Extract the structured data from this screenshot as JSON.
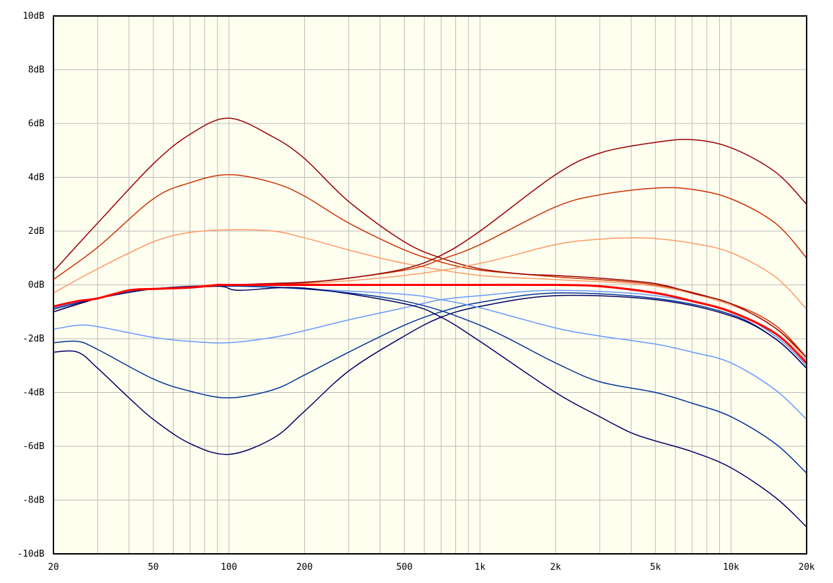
{
  "chart_data": {
    "type": "line",
    "title": "",
    "xlabel": "",
    "ylabel": "",
    "x_scale": "log",
    "xlim": [
      20,
      20000
    ],
    "ylim": [
      -10,
      10
    ],
    "grid": true,
    "background": "#fffff0",
    "x_ticks": [
      {
        "value": 20,
        "label": "20"
      },
      {
        "value": 50,
        "label": "50"
      },
      {
        "value": 100,
        "label": "100"
      },
      {
        "value": 200,
        "label": "200"
      },
      {
        "value": 500,
        "label": "500"
      },
      {
        "value": 1000,
        "label": "1k"
      },
      {
        "value": 2000,
        "label": "2k"
      },
      {
        "value": 5000,
        "label": "5k"
      },
      {
        "value": 10000,
        "label": "10k"
      },
      {
        "value": 20000,
        "label": "20k"
      }
    ],
    "y_ticks": [
      {
        "value": 10,
        "label": "10dB"
      },
      {
        "value": 8,
        "label": "8dB"
      },
      {
        "value": 6,
        "label": "6dB"
      },
      {
        "value": 4,
        "label": "4dB"
      },
      {
        "value": 2,
        "label": "2dB"
      },
      {
        "value": 0,
        "label": "0dB"
      },
      {
        "value": -2,
        "label": "-2dB"
      },
      {
        "value": -4,
        "label": "-4dB"
      },
      {
        "value": -6,
        "label": "-6dB"
      },
      {
        "value": -8,
        "label": "-8dB"
      },
      {
        "value": -10,
        "label": "-10dB"
      }
    ],
    "series": [
      {
        "color": "#ff9966",
        "width": 1.5,
        "points": [
          [
            20,
            -0.3
          ],
          [
            30,
            0.6
          ],
          [
            50,
            1.6
          ],
          [
            70,
            1.95
          ],
          [
            100,
            2.05
          ],
          [
            150,
            2.0
          ],
          [
            200,
            1.75
          ],
          [
            300,
            1.3
          ],
          [
            500,
            0.8
          ],
          [
            1000,
            0.35
          ],
          [
            2000,
            0.2
          ],
          [
            5000,
            -0.05
          ],
          [
            10000,
            -0.75
          ],
          [
            15000,
            -1.6
          ],
          [
            20000,
            -2.8
          ]
        ]
      },
      {
        "color": "#cc3300",
        "width": 1.5,
        "points": [
          [
            20,
            0.2
          ],
          [
            30,
            1.4
          ],
          [
            50,
            3.2
          ],
          [
            70,
            3.8
          ],
          [
            100,
            4.1
          ],
          [
            150,
            3.8
          ],
          [
            200,
            3.3
          ],
          [
            300,
            2.3
          ],
          [
            500,
            1.3
          ],
          [
            700,
            0.85
          ],
          [
            1000,
            0.55
          ],
          [
            2000,
            0.3
          ],
          [
            5000,
            0.0
          ],
          [
            10000,
            -0.7
          ],
          [
            15000,
            -1.5
          ],
          [
            20000,
            -2.7
          ]
        ]
      },
      {
        "color": "#990000",
        "width": 1.5,
        "points": [
          [
            20,
            0.5
          ],
          [
            30,
            2.3
          ],
          [
            50,
            4.5
          ],
          [
            70,
            5.6
          ],
          [
            100,
            6.2
          ],
          [
            150,
            5.5
          ],
          [
            200,
            4.7
          ],
          [
            300,
            3.1
          ],
          [
            500,
            1.6
          ],
          [
            700,
            1.0
          ],
          [
            1000,
            0.6
          ],
          [
            1500,
            0.4
          ],
          [
            2000,
            0.35
          ],
          [
            3000,
            0.25
          ],
          [
            5000,
            0.05
          ],
          [
            7000,
            -0.3
          ],
          [
            10000,
            -0.7
          ],
          [
            15000,
            -1.6
          ],
          [
            20000,
            -2.7
          ]
        ]
      },
      {
        "color": "#ff9966",
        "width": 1.5,
        "points": [
          [
            20,
            -0.8
          ],
          [
            30,
            -0.5
          ],
          [
            50,
            -0.15
          ],
          [
            90,
            0
          ],
          [
            200,
            0.05
          ],
          [
            500,
            0.35
          ],
          [
            1000,
            0.8
          ],
          [
            2000,
            1.5
          ],
          [
            3000,
            1.7
          ],
          [
            4000,
            1.75
          ],
          [
            5000,
            1.72
          ],
          [
            7000,
            1.55
          ],
          [
            10000,
            1.2
          ],
          [
            15000,
            0.3
          ],
          [
            20000,
            -0.9
          ]
        ]
      },
      {
        "color": "#cc3300",
        "width": 1.5,
        "points": [
          [
            20,
            -0.9
          ],
          [
            30,
            -0.5
          ],
          [
            50,
            -0.15
          ],
          [
            90,
            -0.02
          ],
          [
            200,
            0.08
          ],
          [
            500,
            0.55
          ],
          [
            700,
            0.95
          ],
          [
            1000,
            1.5
          ],
          [
            2000,
            2.9
          ],
          [
            3000,
            3.35
          ],
          [
            5000,
            3.6
          ],
          [
            7000,
            3.55
          ],
          [
            10000,
            3.2
          ],
          [
            15000,
            2.3
          ],
          [
            20000,
            1.0
          ]
        ]
      },
      {
        "color": "#990000",
        "width": 1.5,
        "points": [
          [
            20,
            -1.0
          ],
          [
            30,
            -0.5
          ],
          [
            40,
            -0.2
          ],
          [
            50,
            -0.15
          ],
          [
            90,
            -0.05
          ],
          [
            100,
            0
          ],
          [
            200,
            0.1
          ],
          [
            300,
            0.25
          ],
          [
            500,
            0.6
          ],
          [
            700,
            1.1
          ],
          [
            1000,
            2.0
          ],
          [
            2000,
            4.1
          ],
          [
            3000,
            4.9
          ],
          [
            5000,
            5.3
          ],
          [
            7000,
            5.4
          ],
          [
            10000,
            5.1
          ],
          [
            15000,
            4.2
          ],
          [
            20000,
            3.0
          ]
        ]
      },
      {
        "color": "#6699ff",
        "width": 1.5,
        "points": [
          [
            20,
            -1.65
          ],
          [
            25,
            -1.5
          ],
          [
            30,
            -1.55
          ],
          [
            50,
            -1.95
          ],
          [
            70,
            -2.1
          ],
          [
            100,
            -2.15
          ],
          [
            150,
            -1.95
          ],
          [
            200,
            -1.7
          ],
          [
            300,
            -1.3
          ],
          [
            500,
            -0.85
          ],
          [
            700,
            -0.55
          ],
          [
            1000,
            -0.4
          ],
          [
            2000,
            -0.2
          ],
          [
            5000,
            -0.4
          ],
          [
            10000,
            -1.0
          ],
          [
            15000,
            -1.9
          ],
          [
            20000,
            -3.0
          ]
        ]
      },
      {
        "color": "#003399",
        "width": 1.5,
        "points": [
          [
            20,
            -2.15
          ],
          [
            25,
            -2.1
          ],
          [
            30,
            -2.4
          ],
          [
            50,
            -3.5
          ],
          [
            70,
            -3.95
          ],
          [
            100,
            -4.2
          ],
          [
            150,
            -3.9
          ],
          [
            200,
            -3.35
          ],
          [
            300,
            -2.5
          ],
          [
            500,
            -1.5
          ],
          [
            700,
            -1.0
          ],
          [
            1000,
            -0.65
          ],
          [
            2000,
            -0.3
          ],
          [
            5000,
            -0.5
          ],
          [
            10000,
            -1.1
          ],
          [
            15000,
            -2.0
          ],
          [
            20000,
            -3.1
          ]
        ]
      },
      {
        "color": "#000066",
        "width": 1.5,
        "points": [
          [
            20,
            -2.5
          ],
          [
            25,
            -2.5
          ],
          [
            30,
            -3.1
          ],
          [
            40,
            -4.2
          ],
          [
            50,
            -5.0
          ],
          [
            70,
            -5.9
          ],
          [
            100,
            -6.3
          ],
          [
            150,
            -5.7
          ],
          [
            200,
            -4.7
          ],
          [
            300,
            -3.2
          ],
          [
            500,
            -1.9
          ],
          [
            700,
            -1.2
          ],
          [
            1000,
            -0.8
          ],
          [
            2000,
            -0.4
          ],
          [
            5000,
            -0.55
          ],
          [
            10000,
            -1.15
          ],
          [
            15000,
            -2.0
          ],
          [
            20000,
            -3.1
          ]
        ]
      },
      {
        "color": "#6699ff",
        "width": 1.5,
        "points": [
          [
            20,
            -0.85
          ],
          [
            30,
            -0.5
          ],
          [
            50,
            -0.15
          ],
          [
            90,
            -0.03
          ],
          [
            200,
            -0.15
          ],
          [
            500,
            -0.35
          ],
          [
            700,
            -0.55
          ],
          [
            1000,
            -0.85
          ],
          [
            2000,
            -1.6
          ],
          [
            3000,
            -1.9
          ],
          [
            5000,
            -2.2
          ],
          [
            7000,
            -2.5
          ],
          [
            10000,
            -2.9
          ],
          [
            15000,
            -3.9
          ],
          [
            20000,
            -5.0
          ]
        ]
      },
      {
        "color": "#003399",
        "width": 1.5,
        "points": [
          [
            20,
            -0.9
          ],
          [
            30,
            -0.5
          ],
          [
            50,
            -0.15
          ],
          [
            90,
            -0.04
          ],
          [
            200,
            -0.15
          ],
          [
            500,
            -0.6
          ],
          [
            1000,
            -1.5
          ],
          [
            2000,
            -2.9
          ],
          [
            3000,
            -3.6
          ],
          [
            5000,
            -4.0
          ],
          [
            7000,
            -4.4
          ],
          [
            10000,
            -4.9
          ],
          [
            15000,
            -5.9
          ],
          [
            20000,
            -7.0
          ]
        ]
      },
      {
        "color": "#000066",
        "width": 1.5,
        "points": [
          [
            20,
            -1.0
          ],
          [
            30,
            -0.5
          ],
          [
            50,
            -0.15
          ],
          [
            90,
            -0.05
          ],
          [
            110,
            -0.2
          ],
          [
            200,
            -0.12
          ],
          [
            500,
            -0.7
          ],
          [
            700,
            -1.2
          ],
          [
            1000,
            -2.1
          ],
          [
            2000,
            -4.0
          ],
          [
            3000,
            -4.9
          ],
          [
            4000,
            -5.5
          ],
          [
            5000,
            -5.8
          ],
          [
            7000,
            -6.2
          ],
          [
            10000,
            -6.8
          ],
          [
            15000,
            -7.9
          ],
          [
            20000,
            -9.0
          ]
        ]
      },
      {
        "color": "#ff0000",
        "width": 3,
        "points": [
          [
            20,
            -0.8
          ],
          [
            25,
            -0.6
          ],
          [
            30,
            -0.5
          ],
          [
            40,
            -0.2
          ],
          [
            50,
            -0.15
          ],
          [
            70,
            -0.1
          ],
          [
            90,
            0
          ],
          [
            100,
            0
          ],
          [
            200,
            0
          ],
          [
            500,
            0
          ],
          [
            1000,
            0
          ],
          [
            2000,
            0
          ],
          [
            3000,
            -0.05
          ],
          [
            5000,
            -0.3
          ],
          [
            7000,
            -0.6
          ],
          [
            10000,
            -1.0
          ],
          [
            15000,
            -1.8
          ],
          [
            20000,
            -2.9
          ]
        ]
      }
    ]
  }
}
